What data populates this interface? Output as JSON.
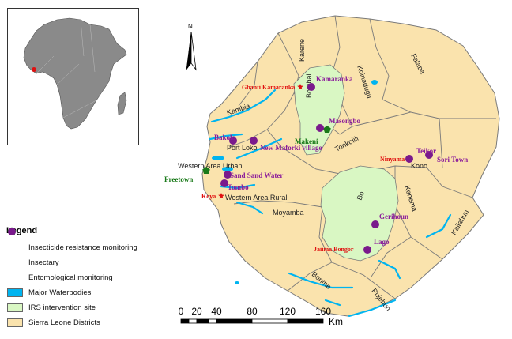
{
  "legend": {
    "title": "Legend",
    "items": [
      {
        "label": "Insecticide resistance monitoring",
        "symbol": "red-star-icon",
        "color": "#e01010"
      },
      {
        "label": "Insectary",
        "symbol": "green-pentagon-icon",
        "color": "#1a7a1a"
      },
      {
        "label": "Entomological monitoring",
        "symbol": "purple-circle-icon",
        "color": "#7a1a8c"
      },
      {
        "label": "Major Waterbodies",
        "symbol": "swatch",
        "color": "#00b4f0"
      },
      {
        "label": "IRS intervention site",
        "symbol": "swatch",
        "color": "#d9f7c3"
      },
      {
        "label": "Sierra Leone Districts",
        "symbol": "swatch",
        "color": "#fae3ad"
      }
    ]
  },
  "north_arrow": {
    "label": "N"
  },
  "scale_bar": {
    "ticks": [
      "0",
      "20",
      "40",
      "80",
      "120",
      "160"
    ],
    "unit": "Km"
  },
  "districts": [
    "Karene",
    "Falaba",
    "Koinadugu",
    "Kambia",
    "Bombali",
    "Port Loko",
    "Tonkolili",
    "Western Area Urban",
    "Western Area Rural",
    "Moyamba",
    "Bo",
    "Kenema",
    "Kono",
    "Kailahun",
    "Bonthe",
    "Pujehun"
  ],
  "sites": {
    "insecticide_resistance": [
      "Gbanti Kamaranka",
      "Ninyama",
      "Koya",
      "Jaiima Bongor"
    ],
    "insectary": [
      "Makeni",
      "Freetown"
    ],
    "entomological": [
      "Kamaranka",
      "Masongbo",
      "Bakolo",
      "New Maforki village",
      "Sand Sand Water",
      "Tombo",
      "Teikor",
      "Sori Town",
      "Gerihoun",
      "Lago"
    ]
  },
  "colors": {
    "district_fill": "#fae3ad",
    "irs_fill": "#d9f7c3",
    "water": "#00b4f0",
    "border": "#7a7a7a",
    "resistance_text": "#e01010",
    "insectary_text": "#1a7a1a",
    "entomo_text": "#8a1a9a",
    "africa_fill": "#8a8a8a"
  }
}
